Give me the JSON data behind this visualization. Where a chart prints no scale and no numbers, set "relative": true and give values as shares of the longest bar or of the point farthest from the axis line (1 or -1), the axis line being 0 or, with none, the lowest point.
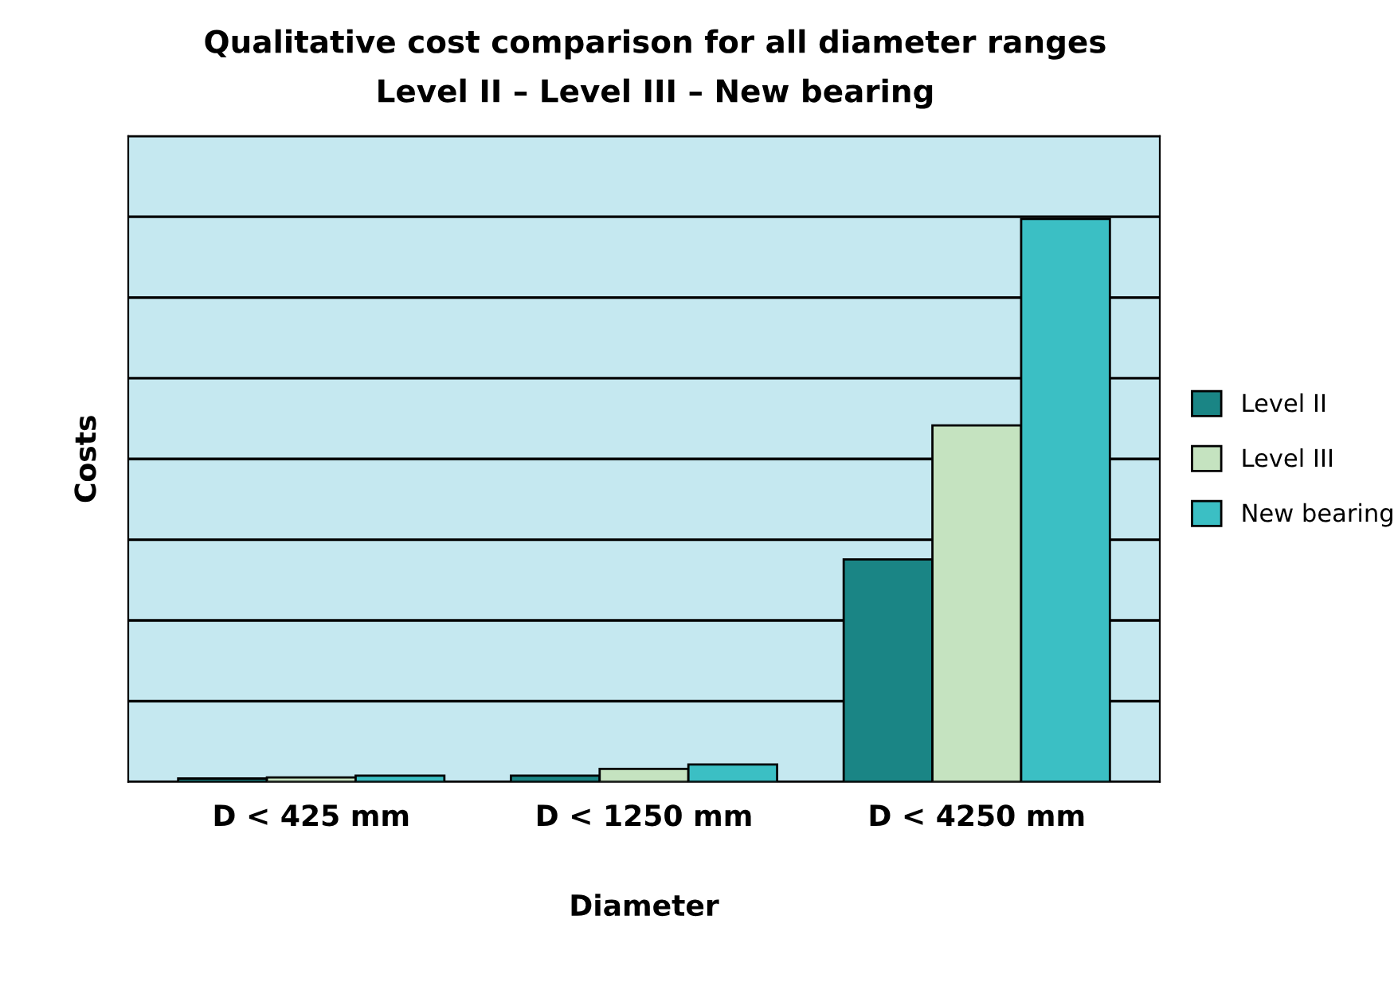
{
  "chart_data": {
    "type": "bar",
    "title": "Qualitative cost comparison for all diameter ranges",
    "subtitle": "Level II – Level III – New bearing",
    "xlabel": "Diameter",
    "ylabel": "Costs",
    "categories": [
      "D < 425 mm",
      "D < 1250 mm",
      "D < 4250 mm"
    ],
    "series": [
      {
        "name": "Level II",
        "color": "#1a8585",
        "values": [
          0.006,
          0.011,
          0.395
        ]
      },
      {
        "name": "Level III",
        "color": "#c5e3c0",
        "values": [
          0.008,
          0.023,
          0.633
        ]
      },
      {
        "name": "New bearing",
        "color": "#3bbfc4",
        "values": [
          0.011,
          0.031,
          1.0
        ]
      }
    ],
    "relative": true,
    "grid": "y",
    "legend": "right"
  }
}
